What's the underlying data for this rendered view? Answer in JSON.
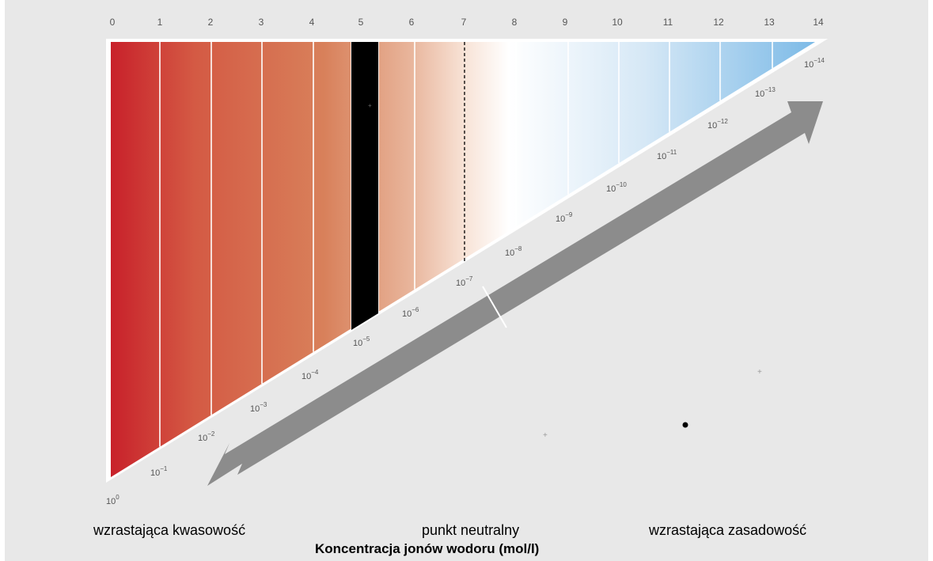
{
  "ph_scale": {
    "values": [
      "0",
      "1",
      "2",
      "3",
      "4",
      "5",
      "6",
      "7",
      "8",
      "9",
      "10",
      "11",
      "12",
      "13",
      "14"
    ],
    "highlighted_value": "5",
    "neutral_value": "7"
  },
  "concentrations": [
    {
      "base": "10",
      "exp": "0"
    },
    {
      "base": "10",
      "exp": "−1"
    },
    {
      "base": "10",
      "exp": "−2"
    },
    {
      "base": "10",
      "exp": "−3"
    },
    {
      "base": "10",
      "exp": "−4"
    },
    {
      "base": "10",
      "exp": "−5"
    },
    {
      "base": "10",
      "exp": "−6"
    },
    {
      "base": "10",
      "exp": "−7"
    },
    {
      "base": "10",
      "exp": "−8"
    },
    {
      "base": "10",
      "exp": "−9"
    },
    {
      "base": "10",
      "exp": "−10"
    },
    {
      "base": "10",
      "exp": "−11"
    },
    {
      "base": "10",
      "exp": "−12"
    },
    {
      "base": "10",
      "exp": "−13"
    },
    {
      "base": "10",
      "exp": "−14"
    }
  ],
  "colors": {
    "background": "#e8e8e8",
    "acid_strong": "#c8202a",
    "acid_mid": "#d8805a",
    "neutral": "#ffffff",
    "base_strong": "#78b8e6",
    "arrow": "#8c8c8c",
    "highlight": "#000000"
  },
  "labels": {
    "acidity": "wzrastająca kwasowość",
    "neutral": "punkt neutralny",
    "alkalinity": "wzrastająca zasadowość",
    "title": "Koncentracja jonów wodoru (mol/l)"
  }
}
